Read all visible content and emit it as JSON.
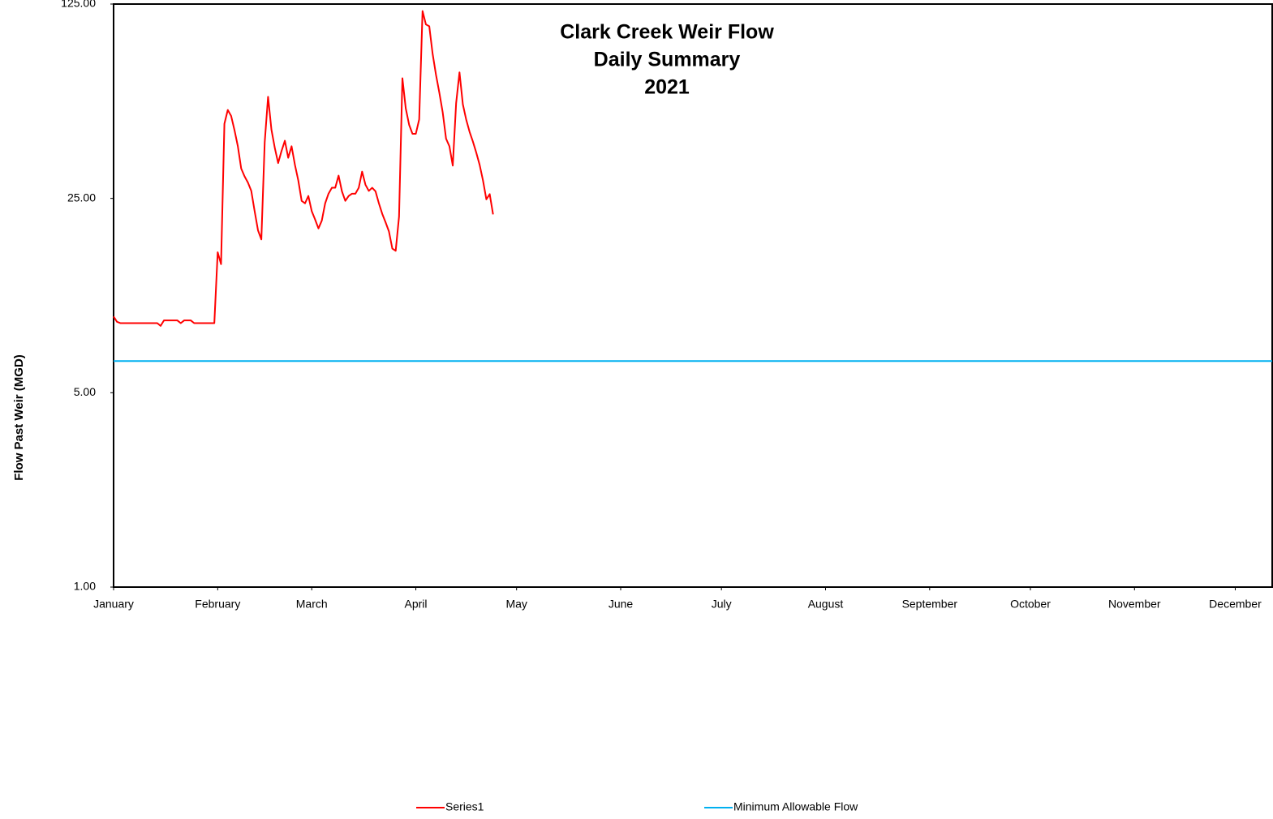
{
  "chart_data": {
    "type": "line",
    "title": [
      "Clark Creek Weir Flow",
      "Daily Summary",
      "2021"
    ],
    "y_label": "Flow Past Weir (MGD)",
    "y_scale": "log",
    "ylim": [
      1,
      125
    ],
    "yticks": [
      {
        "value": 1,
        "label": "1.00"
      },
      {
        "value": 5,
        "label": "5.00"
      },
      {
        "value": 25,
        "label": "25.00"
      },
      {
        "value": 125,
        "label": "125.00"
      }
    ],
    "xlim": [
      0,
      345
    ],
    "xticks": [
      {
        "value": 0,
        "label": "January"
      },
      {
        "value": 31,
        "label": "February"
      },
      {
        "value": 59,
        "label": "March"
      },
      {
        "value": 90,
        "label": "April"
      },
      {
        "value": 120,
        "label": "May"
      },
      {
        "value": 151,
        "label": "June"
      },
      {
        "value": 181,
        "label": "July"
      },
      {
        "value": 212,
        "label": "August"
      },
      {
        "value": 243,
        "label": "September"
      },
      {
        "value": 273,
        "label": "October"
      },
      {
        "value": 304,
        "label": "November"
      },
      {
        "value": 334,
        "label": "December"
      }
    ],
    "series": [
      {
        "name": "Series1",
        "color": "#ff0000",
        "values": [
          9.4,
          9.0,
          8.9,
          8.9,
          8.9,
          8.9,
          8.9,
          8.9,
          8.9,
          8.9,
          8.9,
          8.9,
          8.9,
          8.9,
          8.7,
          9.1,
          9.1,
          9.1,
          9.1,
          9.1,
          8.9,
          9.1,
          9.1,
          9.1,
          8.9,
          8.9,
          8.9,
          8.9,
          8.9,
          8.9,
          8.9,
          16.0,
          14.5,
          46.4,
          52.0,
          49.5,
          44.0,
          38.5,
          32.0,
          30.0,
          28.5,
          26.6,
          22.5,
          19.2,
          17.8,
          39.8,
          58.0,
          44.2,
          38.0,
          33.5,
          37.0,
          40.3,
          35.0,
          38.5,
          33.0,
          29.0,
          24.5,
          24.0,
          25.5,
          22.5,
          21.0,
          19.5,
          20.8,
          24.0,
          26.0,
          27.3,
          27.3,
          30.2,
          26.5,
          24.5,
          25.5,
          26.0,
          26.0,
          27.3,
          31.2,
          28.0,
          26.6,
          27.3,
          26.5,
          24.0,
          22.0,
          20.5,
          19.0,
          16.5,
          16.2,
          21.5,
          67.6,
          52.7,
          46.0,
          42.7,
          42.7,
          48.1,
          118.0,
          105.6,
          104.0,
          82.8,
          69.6,
          60.0,
          51.0,
          41.0,
          38.5,
          32.8,
          55.0,
          71.0,
          54.5,
          48.0,
          43.4,
          40.0,
          36.5,
          33.0,
          29.0,
          24.8,
          25.9,
          21.9
        ]
      },
      {
        "name": "Minimum Allowable Flow",
        "color": "#00b0f0",
        "x": [
          0,
          345
        ],
        "values": [
          6.5,
          6.5
        ]
      }
    ]
  }
}
